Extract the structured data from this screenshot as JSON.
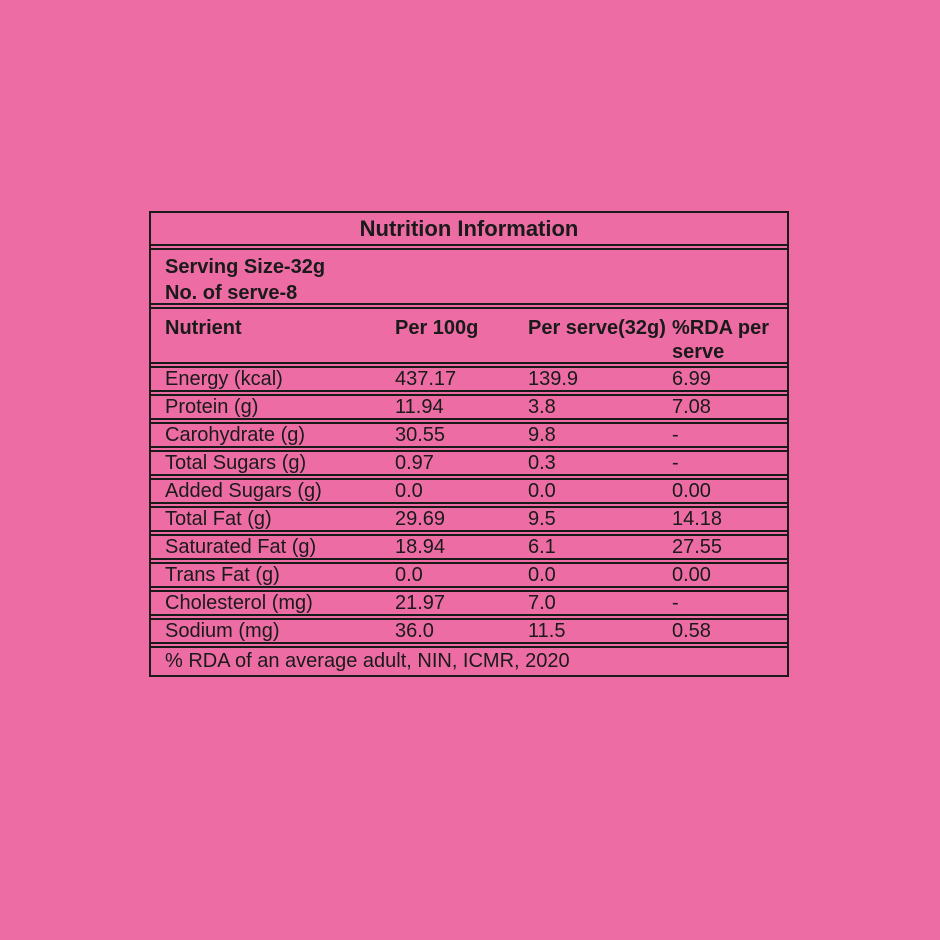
{
  "colors": {
    "background": "#ed6ca4",
    "line": "#1a1a1a",
    "text": "#1a1a1a"
  },
  "label": {
    "title": "Nutrition Information",
    "serving": {
      "line1": "Serving Size-32g",
      "line2": "No. of serve-8"
    },
    "columns": {
      "nutrient": "Nutrient",
      "per_100g": "Per 100g",
      "per_serve": "Per serve(32g)",
      "rda_per_serve": "%RDA per serve"
    },
    "rows": [
      {
        "name": "Energy (kcal)",
        "per_100g": "437.17",
        "per_serve": "139.9",
        "rda": "6.99"
      },
      {
        "name": "Protein (g)",
        "per_100g": "11.94",
        "per_serve": "3.8",
        "rda": "7.08"
      },
      {
        "name": "Carohydrate (g)",
        "per_100g": "30.55",
        "per_serve": "9.8",
        "rda": "-"
      },
      {
        "name": "Total Sugars (g)",
        "per_100g": "0.97",
        "per_serve": "0.3",
        "rda": "-"
      },
      {
        "name": "Added Sugars (g)",
        "per_100g": "0.0",
        "per_serve": "0.0",
        "rda": "0.00"
      },
      {
        "name": "Total Fat (g)",
        "per_100g": "29.69",
        "per_serve": "9.5",
        "rda": "14.18"
      },
      {
        "name": "Saturated Fat (g)",
        "per_100g": "18.94",
        "per_serve": "6.1",
        "rda": "27.55"
      },
      {
        "name": "Trans Fat (g)",
        "per_100g": "0.0",
        "per_serve": "0.0",
        "rda": "0.00"
      },
      {
        "name": "Cholesterol (mg)",
        "per_100g": "21.97",
        "per_serve": "7.0",
        "rda": "-"
      },
      {
        "name": "Sodium (mg)",
        "per_100g": "36.0",
        "per_serve": "11.5",
        "rda": "0.58"
      }
    ],
    "footer": "% RDA of an average adult, NIN, ICMR, 2020"
  }
}
